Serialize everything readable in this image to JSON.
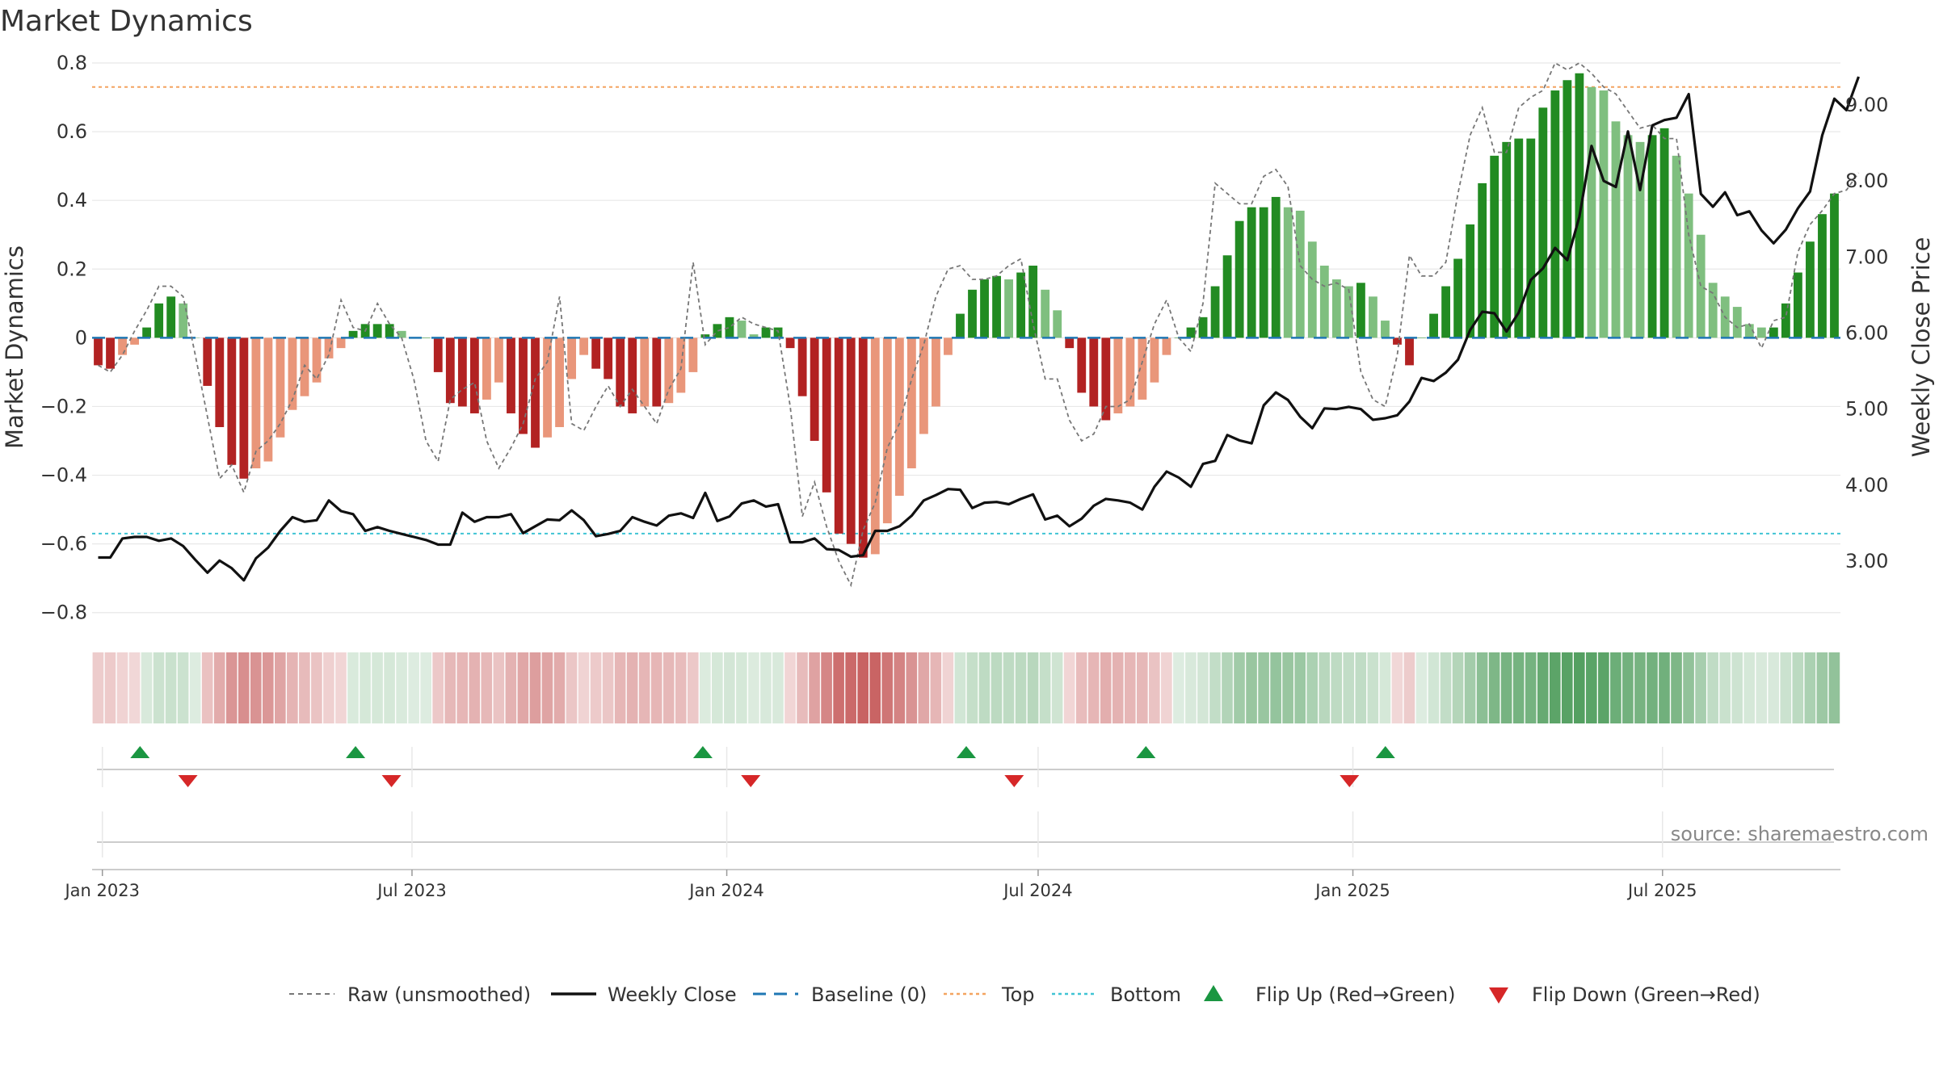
{
  "title": "Market Dynamics",
  "source_text": "source: sharemaestro.com",
  "chart_data": {
    "type": "bar",
    "title": "Market Dynamics",
    "ylabel": "Market Dynamics",
    "y2label": "Weekly Close Price",
    "ylim": [
      -0.85,
      0.8
    ],
    "yticks": [
      "0.8",
      "0.6",
      "0.4",
      "0.2",
      "0",
      "−0.2",
      "−0.4",
      "−0.6",
      "−0.8"
    ],
    "y2lim": [
      2.1,
      9.55
    ],
    "y2ticks": [
      "9.00",
      "8.00",
      "7.00",
      "6.00",
      "5.00",
      "4.00",
      "3.00"
    ],
    "x_start": "2022-12-26",
    "x_end": "2025-10-13",
    "xticks": [
      {
        "label": "Jan 2023",
        "date": "2023-01-01"
      },
      {
        "label": "Jul 2023",
        "date": "2023-07-01"
      },
      {
        "label": "Jan 2024",
        "date": "2024-01-01"
      },
      {
        "label": "Jul 2024",
        "date": "2024-07-01"
      },
      {
        "label": "Jan 2025",
        "date": "2025-01-01"
      },
      {
        "label": "Jul 2025",
        "date": "2025-07-01"
      }
    ],
    "top_line": 0.73,
    "bottom_line": -0.57,
    "grid": true,
    "legend_position": "bottom-center",
    "colors": {
      "dark_red": "#b22222",
      "light_red": "#e9967a",
      "dark_green": "#228b22",
      "light_green": "#7fbf7f",
      "close": "#111111",
      "raw": "#777777",
      "baseline": "#1f77b4",
      "top": "#f4a460",
      "bottom": "#40c4d4",
      "flip_up": "#1a9641",
      "flip_down": "#d62728"
    },
    "bars": [
      -0.08,
      -0.09,
      -0.05,
      -0.02,
      0.03,
      0.1,
      0.12,
      0.1,
      0.0,
      -0.14,
      -0.26,
      -0.37,
      -0.41,
      -0.38,
      -0.36,
      -0.29,
      -0.21,
      -0.17,
      -0.13,
      -0.06,
      -0.03,
      0.02,
      0.04,
      0.04,
      0.04,
      0.02,
      0.0,
      0.0,
      -0.1,
      -0.19,
      -0.2,
      -0.22,
      -0.18,
      -0.13,
      -0.22,
      -0.28,
      -0.32,
      -0.29,
      -0.26,
      -0.12,
      -0.05,
      -0.09,
      -0.12,
      -0.2,
      -0.22,
      -0.2,
      -0.2,
      -0.19,
      -0.16,
      -0.1,
      0.01,
      0.04,
      0.06,
      0.05,
      0.01,
      0.03,
      0.03,
      -0.03,
      -0.17,
      -0.3,
      -0.45,
      -0.57,
      -0.6,
      -0.64,
      -0.63,
      -0.54,
      -0.46,
      -0.38,
      -0.28,
      -0.2,
      -0.05,
      0.07,
      0.14,
      0.17,
      0.18,
      0.17,
      0.19,
      0.21,
      0.14,
      0.08,
      -0.03,
      -0.16,
      -0.2,
      -0.24,
      -0.22,
      -0.2,
      -0.18,
      -0.13,
      -0.05,
      0.0,
      0.03,
      0.06,
      0.15,
      0.24,
      0.34,
      0.38,
      0.38,
      0.41,
      0.38,
      0.37,
      0.28,
      0.21,
      0.17,
      0.15,
      0.16,
      0.12,
      0.05,
      -0.02,
      -0.08,
      0.0,
      0.07,
      0.15,
      0.23,
      0.33,
      0.45,
      0.53,
      0.57,
      0.58,
      0.58,
      0.67,
      0.72,
      0.75,
      0.77,
      0.73,
      0.72,
      0.63,
      0.59,
      0.57,
      0.59,
      0.61,
      0.53,
      0.42,
      0.3,
      0.16,
      0.12,
      0.09,
      0.04,
      0.03,
      0.03,
      0.1,
      0.19,
      0.28,
      0.36,
      0.42
    ],
    "raw": [
      -0.08,
      -0.1,
      -0.05,
      0.02,
      0.08,
      0.15,
      0.15,
      0.12,
      -0.05,
      -0.23,
      -0.41,
      -0.37,
      -0.45,
      -0.33,
      -0.3,
      -0.25,
      -0.18,
      -0.08,
      -0.12,
      -0.05,
      0.11,
      0.03,
      0.02,
      0.1,
      0.04,
      0.0,
      -0.12,
      -0.3,
      -0.36,
      -0.18,
      -0.15,
      -0.13,
      -0.3,
      -0.38,
      -0.32,
      -0.25,
      -0.12,
      -0.07,
      0.12,
      -0.25,
      -0.27,
      -0.2,
      -0.14,
      -0.2,
      -0.15,
      -0.2,
      -0.25,
      -0.15,
      -0.09,
      0.22,
      -0.02,
      0.02,
      0.03,
      0.06,
      0.04,
      0.03,
      0.02,
      -0.2,
      -0.52,
      -0.42,
      -0.55,
      -0.65,
      -0.72,
      -0.56,
      -0.48,
      -0.32,
      -0.25,
      -0.12,
      -0.02,
      0.12,
      0.2,
      0.21,
      0.17,
      0.17,
      0.18,
      0.21,
      0.23,
      0.04,
      -0.12,
      -0.12,
      -0.24,
      -0.3,
      -0.28,
      -0.2,
      -0.2,
      -0.18,
      -0.07,
      0.04,
      0.11,
      0.0,
      -0.04,
      0.1,
      0.45,
      0.42,
      0.39,
      0.39,
      0.47,
      0.49,
      0.44,
      0.21,
      0.17,
      0.15,
      0.16,
      0.14,
      -0.1,
      -0.18,
      -0.2,
      -0.05,
      0.24,
      0.18,
      0.18,
      0.22,
      0.42,
      0.59,
      0.67,
      0.54,
      0.54,
      0.67,
      0.7,
      0.72,
      0.8,
      0.78,
      0.8,
      0.77,
      0.73,
      0.71,
      0.66,
      0.61,
      0.62,
      0.58,
      0.58,
      0.3,
      0.15,
      0.13,
      0.06,
      0.03,
      0.04,
      -0.03,
      0.05,
      0.06,
      0.25,
      0.33,
      0.37,
      0.42,
      0.43,
      0.48
    ],
    "close": [
      3.05,
      3.05,
      3.3,
      3.32,
      3.32,
      3.27,
      3.3,
      3.2,
      3.02,
      2.85,
      3.01,
      2.91,
      2.75,
      3.04,
      3.18,
      3.4,
      3.58,
      3.52,
      3.54,
      3.8,
      3.66,
      3.62,
      3.4,
      3.45,
      3.4,
      3.36,
      3.32,
      3.28,
      3.22,
      3.22,
      3.64,
      3.52,
      3.58,
      3.58,
      3.62,
      3.37,
      3.46,
      3.55,
      3.54,
      3.67,
      3.54,
      3.33,
      3.36,
      3.4,
      3.58,
      3.52,
      3.47,
      3.6,
      3.63,
      3.57,
      3.9,
      3.53,
      3.59,
      3.76,
      3.8,
      3.72,
      3.75,
      3.25,
      3.25,
      3.3,
      3.16,
      3.15,
      3.06,
      3.08,
      3.4,
      3.4,
      3.46,
      3.6,
      3.8,
      3.87,
      3.95,
      3.94,
      3.7,
      3.77,
      3.78,
      3.75,
      3.82,
      3.88,
      3.55,
      3.6,
      3.46,
      3.56,
      3.73,
      3.82,
      3.8,
      3.77,
      3.68,
      3.98,
      4.18,
      4.1,
      3.98,
      4.28,
      4.32,
      4.66,
      4.59,
      4.55,
      5.05,
      5.22,
      5.12,
      4.9,
      4.75,
      5.01,
      5.0,
      5.03,
      5.0,
      4.86,
      4.88,
      4.92,
      5.1,
      5.41,
      5.37,
      5.48,
      5.65,
      6.04,
      6.28,
      6.26,
      6.02,
      6.27,
      6.7,
      6.85,
      7.12,
      6.96,
      7.53,
      8.46,
      8.0,
      7.92,
      8.65,
      7.88,
      8.73,
      8.8,
      8.83,
      9.14,
      7.83,
      7.66,
      7.85,
      7.55,
      7.6,
      7.35,
      7.18,
      7.36,
      7.64,
      7.86,
      8.6,
      9.08,
      8.93,
      9.37
    ],
    "flip_up_dates": [
      "2023-01-23",
      "2023-05-29",
      "2023-12-18",
      "2024-05-20",
      "2024-09-02",
      "2025-01-20"
    ],
    "flip_down_dates": [
      "2023-02-20",
      "2023-06-19",
      "2024-01-15",
      "2024-06-17",
      "2024-12-30"
    ]
  },
  "legend": {
    "raw": "Raw (unsmoothed)",
    "close": "Weekly Close",
    "baseline": "Baseline (0)",
    "top": "Top",
    "bottom": "Bottom",
    "flip_up": "Flip Up (Red→Green)",
    "flip_down": "Flip Down (Green→Red)"
  }
}
